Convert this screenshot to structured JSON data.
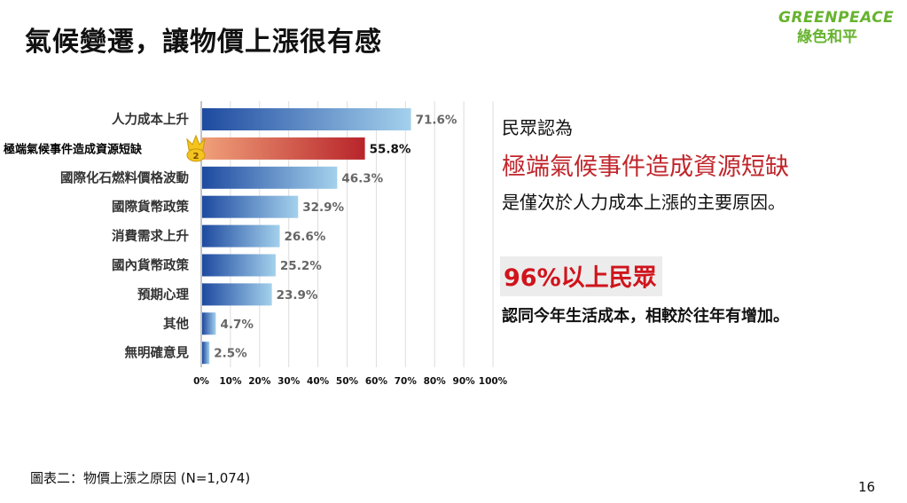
{
  "slide": {
    "title": "氣候變遷，讓物價上漲很有感",
    "logo_en": "GREENPEACE",
    "logo_zh": "綠色和平",
    "callout_line1": "民眾認為",
    "callout_highlight": "極端氣候事件造成資源短缺",
    "callout_line3": "是僅次於人力成本上漲的主要原因。",
    "stat_headline": "96%以上民眾",
    "stat_text": "認同今年生活成本，相較於往年有增加。",
    "caption": "圖表二：物價上漲之原因 (N=1,074)",
    "page_number": "16"
  },
  "chart_data": {
    "type": "bar",
    "orientation": "horizontal",
    "categories": [
      "人力成本上升",
      "極端氣候事件造成資源短缺",
      "國際化石燃料價格波動",
      "國際貨幣政策",
      "消費需求上升",
      "國內貨幣政策",
      "預期心理",
      "其他",
      "無明確意見"
    ],
    "values": [
      71.6,
      55.8,
      46.3,
      32.9,
      26.6,
      25.2,
      23.9,
      4.7,
      2.5
    ],
    "value_labels": [
      "71.6%",
      "55.8%",
      "46.3%",
      "32.9%",
      "26.6%",
      "25.2%",
      "23.9%",
      "4.7%",
      "2.5%"
    ],
    "highlight_index": 1,
    "highlight_badge": "2",
    "xlim": [
      0,
      100
    ],
    "xticks": [
      "0%",
      "10%",
      "20%",
      "30%",
      "40%",
      "50%",
      "60%",
      "70%",
      "80%",
      "90%",
      "100%"
    ],
    "colors": {
      "bar_dark": "#1e4aa0",
      "bar_light": "#a4d1ec",
      "highlight_dark": "#b8242a",
      "highlight_light": "#f0a07a",
      "grid": "#dddddd",
      "badge": "#f3c41d"
    },
    "grid": true
  }
}
